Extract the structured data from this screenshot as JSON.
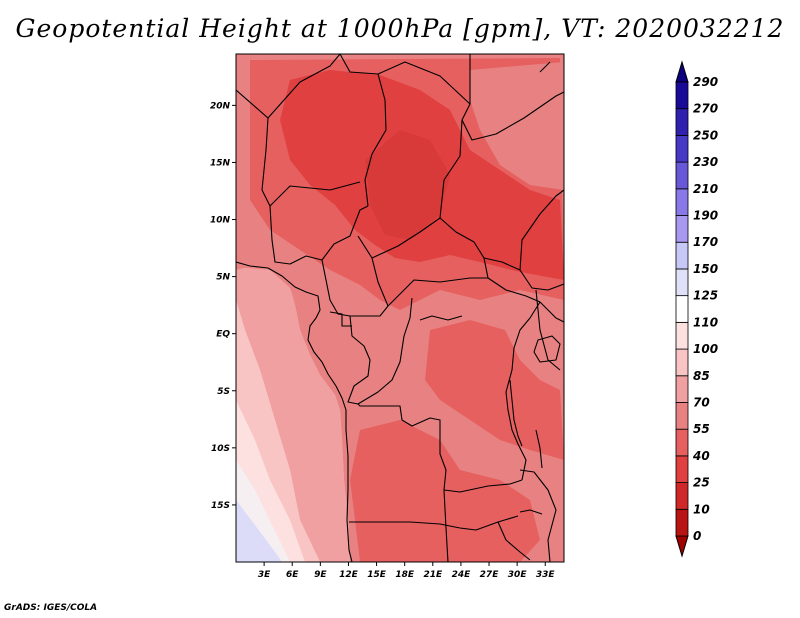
{
  "title": "Geopotential Height at 1000hPa [gpm], VT: 2020032212",
  "credit": "GrADS: IGES/COLA",
  "map": {
    "projection": "latlon",
    "lon_range": [
      0,
      35
    ],
    "lat_range": [
      -20,
      24.5
    ],
    "lon_ticks": [
      {
        "value": 3,
        "label": "3E"
      },
      {
        "value": 6,
        "label": "6E"
      },
      {
        "value": 9,
        "label": "9E"
      },
      {
        "value": 12,
        "label": "12E"
      },
      {
        "value": 15,
        "label": "15E"
      },
      {
        "value": 18,
        "label": "18E"
      },
      {
        "value": 21,
        "label": "21E"
      },
      {
        "value": 24,
        "label": "24E"
      },
      {
        "value": 27,
        "label": "27E"
      },
      {
        "value": 30,
        "label": "30E"
      },
      {
        "value": 33,
        "label": "33E"
      }
    ],
    "lat_ticks": [
      {
        "value": 20,
        "label": "20N"
      },
      {
        "value": 15,
        "label": "15N"
      },
      {
        "value": 10,
        "label": "10N"
      },
      {
        "value": 5,
        "label": "5N"
      },
      {
        "value": 0,
        "label": "EQ"
      },
      {
        "value": -5,
        "label": "5S"
      },
      {
        "value": -10,
        "label": "10S"
      },
      {
        "value": -15,
        "label": "15S"
      }
    ]
  },
  "colorbar": {
    "levels": [
      "0",
      "10",
      "25",
      "40",
      "55",
      "70",
      "85",
      "100",
      "110",
      "125",
      "150",
      "170",
      "190",
      "210",
      "230",
      "250",
      "270",
      "290"
    ],
    "colors": [
      "#a00000",
      "#b81414",
      "#d02828",
      "#e04040",
      "#e66060",
      "#e88282",
      "#f0a0a0",
      "#f8c4c4",
      "#fde0e0",
      "#ffffff",
      "#e0e0f8",
      "#c8c8f8",
      "#a898f0",
      "#8878e8",
      "#6858d8",
      "#4838c8",
      "#3020b0",
      "#1a0a98",
      "#0c0080"
    ]
  }
}
